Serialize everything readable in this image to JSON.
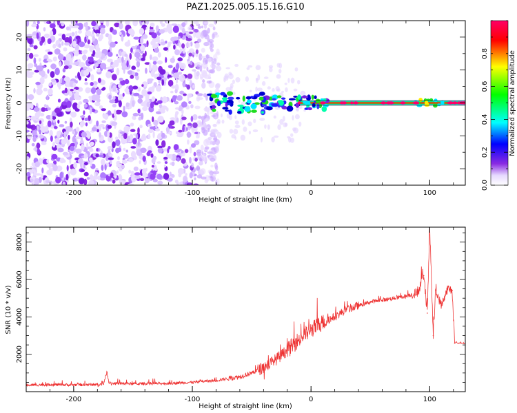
{
  "title": "PAZ1.2025.005.15.16.G10",
  "chart_data": [
    {
      "type": "heatmap",
      "xlabel": "Height of straight line (km)",
      "ylabel": "Frequency (Hz)",
      "xlim": [
        -240,
        130
      ],
      "ylim": [
        -25,
        25
      ],
      "x_ticks": [
        -200,
        -100,
        0,
        100
      ],
      "y_ticks": [
        -20,
        -10,
        0,
        10,
        20
      ],
      "colorbar": {
        "label": "Normalized spectral amplitude",
        "range": [
          0,
          1
        ],
        "ticks": [
          0.0,
          0.2,
          0.4,
          0.6,
          0.8
        ],
        "colormap": "rainbow",
        "colors": [
          "#ffffff",
          "#e6d9ff",
          "#8a2be2",
          "#0000ff",
          "#00ffff",
          "#00ff00",
          "#ffff00",
          "#ff0000",
          "#ff0066"
        ]
      },
      "features": {
        "noise_region_x": [
          -240,
          -85
        ],
        "carrier_frequency_hz": 0,
        "carrier_onset_x": -85,
        "carrier_strong_from_x": -10
      },
      "grid": false
    },
    {
      "type": "line",
      "xlabel": "Height of straight line (km)",
      "ylabel": "SNR (10 * v/v)",
      "xlim": [
        -240,
        130
      ],
      "ylim": [
        0,
        8800
      ],
      "x_ticks": [
        -200,
        -100,
        0,
        100
      ],
      "y_ticks": [
        2000,
        4000,
        6000,
        8000
      ],
      "color": "#ee3333",
      "grid": false,
      "series": [
        {
          "x": [
            -240,
            -220,
            -200,
            -180,
            -175,
            -172,
            -170,
            -150,
            -120,
            -100,
            -80,
            -60,
            -50,
            -40,
            -30,
            -20,
            -10,
            0,
            10,
            20,
            30,
            40,
            50,
            60,
            70,
            80,
            90,
            95,
            98,
            100,
            103,
            105,
            110,
            115,
            119,
            121,
            130
          ],
          "y": [
            350,
            380,
            360,
            380,
            400,
            1050,
            450,
            420,
            450,
            500,
            600,
            800,
            1000,
            1300,
            1700,
            2200,
            2800,
            3300,
            3700,
            4000,
            4400,
            4600,
            4800,
            4900,
            5000,
            5100,
            5300,
            6200,
            4200,
            8800,
            3000,
            5400,
            4600,
            5500,
            5400,
            2600,
            2600
          ]
        }
      ]
    }
  ]
}
